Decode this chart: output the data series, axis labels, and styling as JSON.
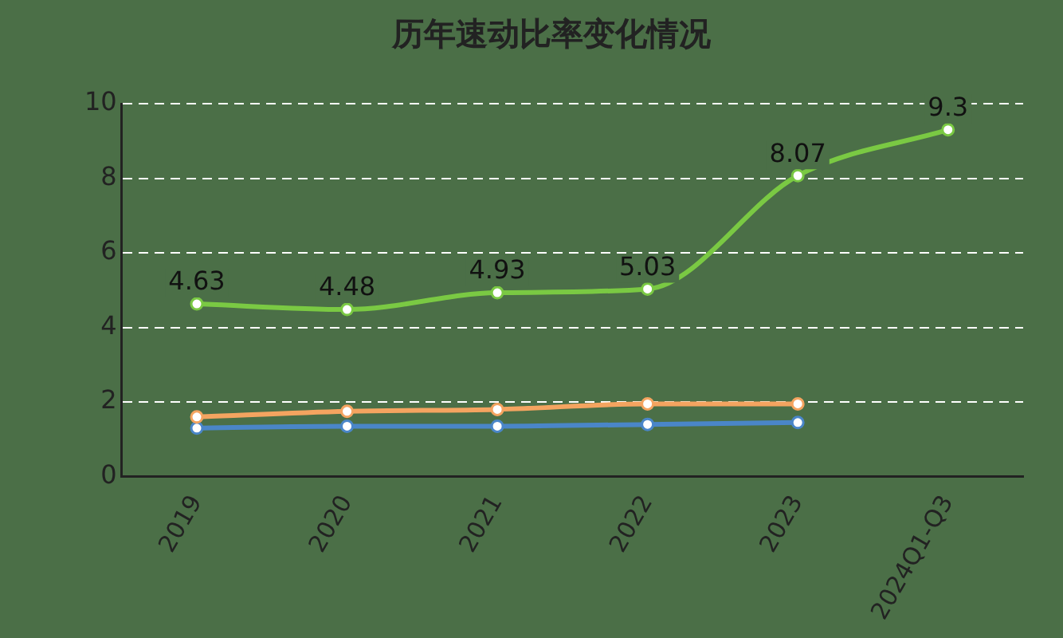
{
  "chart_data": {
    "type": "line",
    "title": "历年速动比率变化情况",
    "categories": [
      "2019",
      "2020",
      "2021",
      "2022",
      "2023",
      "2024Q1-Q3"
    ],
    "series": [
      {
        "color": "#7ac943",
        "values": [
          4.63,
          4.48,
          4.93,
          5.03,
          8.07,
          9.3
        ],
        "value_labels": [
          "4.63",
          "4.48",
          "4.93",
          "5.03",
          "8.07",
          "9.3"
        ]
      },
      {
        "color": "#f4a460",
        "values": [
          1.6,
          1.75,
          1.8,
          1.95,
          1.95,
          null
        ]
      },
      {
        "color": "#4a86c8",
        "values": [
          1.3,
          1.35,
          1.35,
          1.4,
          1.45,
          null
        ]
      }
    ],
    "ylim": [
      0,
      10
    ],
    "yticks": [
      0,
      2,
      4,
      6,
      8,
      10
    ],
    "grid": "y",
    "legend": false,
    "marker": "circle",
    "line_style": "solid"
  }
}
